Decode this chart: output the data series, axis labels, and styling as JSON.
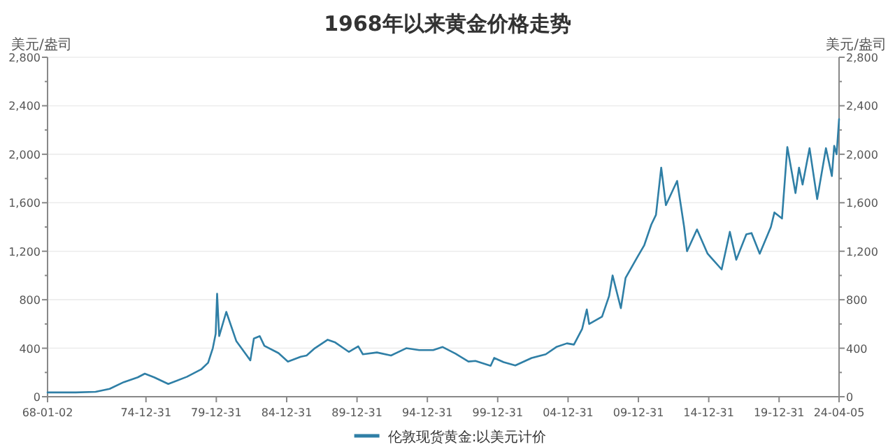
{
  "chart_data": {
    "type": "line",
    "title": "1968年以来黄金价格走势",
    "ylabel": "美元/盎司",
    "y2label": "美元/盎司",
    "x": [
      "1968-01-02",
      "1970-01-01",
      "1971-06-01",
      "1972-06-01",
      "1973-06-01",
      "1974-06-01",
      "1974-12-01",
      "1975-08-01",
      "1976-08-01",
      "1977-12-01",
      "1978-12-01",
      "1979-06-01",
      "1979-10-01",
      "1979-12-15",
      "1980-01-21",
      "1980-03-15",
      "1980-09-15",
      "1981-06-01",
      "1982-06-01",
      "1982-09-01",
      "1983-02-01",
      "1983-06-01",
      "1984-06-01",
      "1985-02-01",
      "1986-01-01",
      "1986-06-01",
      "1987-01-01",
      "1987-12-01",
      "1988-06-01",
      "1989-06-01",
      "1990-02-01",
      "1990-06-01",
      "1991-06-01",
      "1992-06-01",
      "1993-07-01",
      "1994-06-01",
      "1995-06-01",
      "1996-02-01",
      "1997-01-01",
      "1997-12-01",
      "1998-06-01",
      "1999-07-01",
      "1999-10-01",
      "2000-06-01",
      "2001-04-01",
      "2002-06-01",
      "2003-06-01",
      "2004-03-01",
      "2004-12-01",
      "2005-06-01",
      "2006-01-01",
      "2006-05-01",
      "2006-07-01",
      "2007-06-01",
      "2007-12-01",
      "2008-03-01",
      "2008-10-01",
      "2009-02-01",
      "2009-12-01",
      "2010-06-01",
      "2010-12-01",
      "2011-04-01",
      "2011-08-15",
      "2011-12-15",
      "2012-10-01",
      "2013-04-01",
      "2013-06-15",
      "2014-03-01",
      "2014-12-01",
      "2015-12-01",
      "2016-07-01",
      "2016-12-15",
      "2017-09-01",
      "2018-01-15",
      "2018-08-15",
      "2019-06-01",
      "2019-09-01",
      "2020-03-15",
      "2020-08-01",
      "2021-03-01",
      "2021-06-01",
      "2021-09-01",
      "2022-03-01",
      "2022-09-15",
      "2023-05-01",
      "2023-10-01",
      "2023-12-01",
      "2024-02-01",
      "2024-04-05"
    ],
    "series": [
      {
        "name": "伦敦现货黄金:以美元计价",
        "color": "#2f7fa6",
        "values": [
          35,
          35,
          40,
          65,
          120,
          160,
          190,
          160,
          105,
          165,
          225,
          280,
          400,
          520,
          850,
          500,
          700,
          460,
          300,
          480,
          500,
          420,
          360,
          290,
          330,
          340,
          400,
          470,
          450,
          370,
          415,
          350,
          365,
          340,
          400,
          385,
          385,
          410,
          355,
          290,
          295,
          255,
          320,
          285,
          258,
          320,
          350,
          410,
          440,
          430,
          560,
          720,
          600,
          660,
          830,
          1000,
          730,
          980,
          1150,
          1250,
          1420,
          1500,
          1890,
          1580,
          1780,
          1400,
          1200,
          1380,
          1180,
          1050,
          1360,
          1130,
          1340,
          1350,
          1180,
          1400,
          1520,
          1470,
          2060,
          1680,
          1890,
          1750,
          2050,
          1630,
          2050,
          1820,
          2070,
          2000,
          2290
        ]
      }
    ],
    "xlim": [
      "1968-01-02",
      "2024-04-05"
    ],
    "xticks": [
      {
        "value": "1968-01-02",
        "label": "68-01-02"
      },
      {
        "value": "1974-12-31",
        "label": "74-12-31"
      },
      {
        "value": "1979-12-31",
        "label": "79-12-31"
      },
      {
        "value": "1984-12-31",
        "label": "84-12-31"
      },
      {
        "value": "1989-12-31",
        "label": "89-12-31"
      },
      {
        "value": "1994-12-31",
        "label": "94-12-31"
      },
      {
        "value": "1999-12-31",
        "label": "99-12-31"
      },
      {
        "value": "2004-12-31",
        "label": "04-12-31"
      },
      {
        "value": "2009-12-31",
        "label": "09-12-31"
      },
      {
        "value": "2014-12-31",
        "label": "14-12-31"
      },
      {
        "value": "2019-12-31",
        "label": "19-12-31"
      },
      {
        "value": "2024-04-05",
        "label": "24-04-05"
      }
    ],
    "ylim": [
      0,
      2800
    ],
    "yticks": [
      0,
      {
        "value": 200,
        "label": null
      },
      400,
      {
        "value": 600,
        "label": null
      },
      {
        "value": 800,
        "label": "800"
      },
      {
        "value": 1000,
        "label": null
      },
      {
        "value": 1200,
        "label": "1,200"
      },
      {
        "value": 1400,
        "label": null
      },
      {
        "value": 1600,
        "label": "1,600"
      },
      {
        "value": 1800,
        "label": null
      },
      {
        "value": 2000,
        "label": "2,000"
      },
      {
        "value": 2200,
        "label": null
      },
      {
        "value": 2400,
        "label": "2,400"
      },
      {
        "value": 2600,
        "label": null
      },
      {
        "value": 2800,
        "label": "2,800"
      }
    ],
    "y2lim": [
      0,
      2800
    ],
    "y2ticks": [
      0,
      {
        "value": 200,
        "label": null
      },
      400,
      {
        "value": 600,
        "label": null
      },
      {
        "value": 800,
        "label": "800"
      },
      {
        "value": 1000,
        "label": null
      },
      {
        "value": 1200,
        "label": "1,200"
      },
      {
        "value": 1400,
        "label": null
      },
      {
        "value": 1600,
        "label": "1,600"
      },
      {
        "value": 1800,
        "label": null
      },
      {
        "value": 2000,
        "label": "2,000"
      },
      {
        "value": 2200,
        "label": null
      },
      {
        "value": 2400,
        "label": "2,400"
      },
      {
        "value": 2600,
        "label": null
      },
      {
        "value": 2800,
        "label": "2,800"
      }
    ],
    "grid": "y",
    "legend": "bottom",
    "marker": "none",
    "line_style": "solid"
  }
}
